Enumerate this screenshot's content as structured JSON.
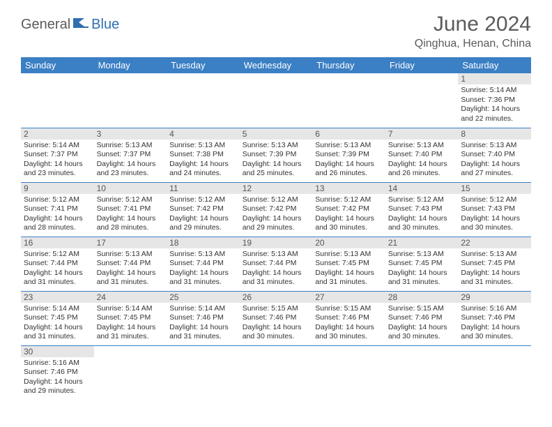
{
  "logo": {
    "part1": "General",
    "part2": "Blue"
  },
  "title": "June 2024",
  "location": "Qinghua, Henan, China",
  "colors": {
    "header_bg": "#3b7fc4",
    "header_text": "#ffffff",
    "day_row_bg": "#e6e6e6",
    "border": "#3b7fc4",
    "logo_gray": "#5a5a5a",
    "logo_blue": "#2f6fb0"
  },
  "weekdays": [
    "Sunday",
    "Monday",
    "Tuesday",
    "Wednesday",
    "Thursday",
    "Friday",
    "Saturday"
  ],
  "weeks": [
    [
      null,
      null,
      null,
      null,
      null,
      null,
      {
        "d": "1",
        "sr": "Sunrise: 5:14 AM",
        "ss": "Sunset: 7:36 PM",
        "dl1": "Daylight: 14 hours",
        "dl2": "and 22 minutes."
      }
    ],
    [
      {
        "d": "2",
        "sr": "Sunrise: 5:14 AM",
        "ss": "Sunset: 7:37 PM",
        "dl1": "Daylight: 14 hours",
        "dl2": "and 23 minutes."
      },
      {
        "d": "3",
        "sr": "Sunrise: 5:13 AM",
        "ss": "Sunset: 7:37 PM",
        "dl1": "Daylight: 14 hours",
        "dl2": "and 23 minutes."
      },
      {
        "d": "4",
        "sr": "Sunrise: 5:13 AM",
        "ss": "Sunset: 7:38 PM",
        "dl1": "Daylight: 14 hours",
        "dl2": "and 24 minutes."
      },
      {
        "d": "5",
        "sr": "Sunrise: 5:13 AM",
        "ss": "Sunset: 7:39 PM",
        "dl1": "Daylight: 14 hours",
        "dl2": "and 25 minutes."
      },
      {
        "d": "6",
        "sr": "Sunrise: 5:13 AM",
        "ss": "Sunset: 7:39 PM",
        "dl1": "Daylight: 14 hours",
        "dl2": "and 26 minutes."
      },
      {
        "d": "7",
        "sr": "Sunrise: 5:13 AM",
        "ss": "Sunset: 7:40 PM",
        "dl1": "Daylight: 14 hours",
        "dl2": "and 26 minutes."
      },
      {
        "d": "8",
        "sr": "Sunrise: 5:13 AM",
        "ss": "Sunset: 7:40 PM",
        "dl1": "Daylight: 14 hours",
        "dl2": "and 27 minutes."
      }
    ],
    [
      {
        "d": "9",
        "sr": "Sunrise: 5:12 AM",
        "ss": "Sunset: 7:41 PM",
        "dl1": "Daylight: 14 hours",
        "dl2": "and 28 minutes."
      },
      {
        "d": "10",
        "sr": "Sunrise: 5:12 AM",
        "ss": "Sunset: 7:41 PM",
        "dl1": "Daylight: 14 hours",
        "dl2": "and 28 minutes."
      },
      {
        "d": "11",
        "sr": "Sunrise: 5:12 AM",
        "ss": "Sunset: 7:42 PM",
        "dl1": "Daylight: 14 hours",
        "dl2": "and 29 minutes."
      },
      {
        "d": "12",
        "sr": "Sunrise: 5:12 AM",
        "ss": "Sunset: 7:42 PM",
        "dl1": "Daylight: 14 hours",
        "dl2": "and 29 minutes."
      },
      {
        "d": "13",
        "sr": "Sunrise: 5:12 AM",
        "ss": "Sunset: 7:42 PM",
        "dl1": "Daylight: 14 hours",
        "dl2": "and 30 minutes."
      },
      {
        "d": "14",
        "sr": "Sunrise: 5:12 AM",
        "ss": "Sunset: 7:43 PM",
        "dl1": "Daylight: 14 hours",
        "dl2": "and 30 minutes."
      },
      {
        "d": "15",
        "sr": "Sunrise: 5:12 AM",
        "ss": "Sunset: 7:43 PM",
        "dl1": "Daylight: 14 hours",
        "dl2": "and 30 minutes."
      }
    ],
    [
      {
        "d": "16",
        "sr": "Sunrise: 5:12 AM",
        "ss": "Sunset: 7:44 PM",
        "dl1": "Daylight: 14 hours",
        "dl2": "and 31 minutes."
      },
      {
        "d": "17",
        "sr": "Sunrise: 5:13 AM",
        "ss": "Sunset: 7:44 PM",
        "dl1": "Daylight: 14 hours",
        "dl2": "and 31 minutes."
      },
      {
        "d": "18",
        "sr": "Sunrise: 5:13 AM",
        "ss": "Sunset: 7:44 PM",
        "dl1": "Daylight: 14 hours",
        "dl2": "and 31 minutes."
      },
      {
        "d": "19",
        "sr": "Sunrise: 5:13 AM",
        "ss": "Sunset: 7:44 PM",
        "dl1": "Daylight: 14 hours",
        "dl2": "and 31 minutes."
      },
      {
        "d": "20",
        "sr": "Sunrise: 5:13 AM",
        "ss": "Sunset: 7:45 PM",
        "dl1": "Daylight: 14 hours",
        "dl2": "and 31 minutes."
      },
      {
        "d": "21",
        "sr": "Sunrise: 5:13 AM",
        "ss": "Sunset: 7:45 PM",
        "dl1": "Daylight: 14 hours",
        "dl2": "and 31 minutes."
      },
      {
        "d": "22",
        "sr": "Sunrise: 5:13 AM",
        "ss": "Sunset: 7:45 PM",
        "dl1": "Daylight: 14 hours",
        "dl2": "and 31 minutes."
      }
    ],
    [
      {
        "d": "23",
        "sr": "Sunrise: 5:14 AM",
        "ss": "Sunset: 7:45 PM",
        "dl1": "Daylight: 14 hours",
        "dl2": "and 31 minutes."
      },
      {
        "d": "24",
        "sr": "Sunrise: 5:14 AM",
        "ss": "Sunset: 7:45 PM",
        "dl1": "Daylight: 14 hours",
        "dl2": "and 31 minutes."
      },
      {
        "d": "25",
        "sr": "Sunrise: 5:14 AM",
        "ss": "Sunset: 7:46 PM",
        "dl1": "Daylight: 14 hours",
        "dl2": "and 31 minutes."
      },
      {
        "d": "26",
        "sr": "Sunrise: 5:15 AM",
        "ss": "Sunset: 7:46 PM",
        "dl1": "Daylight: 14 hours",
        "dl2": "and 30 minutes."
      },
      {
        "d": "27",
        "sr": "Sunrise: 5:15 AM",
        "ss": "Sunset: 7:46 PM",
        "dl1": "Daylight: 14 hours",
        "dl2": "and 30 minutes."
      },
      {
        "d": "28",
        "sr": "Sunrise: 5:15 AM",
        "ss": "Sunset: 7:46 PM",
        "dl1": "Daylight: 14 hours",
        "dl2": "and 30 minutes."
      },
      {
        "d": "29",
        "sr": "Sunrise: 5:16 AM",
        "ss": "Sunset: 7:46 PM",
        "dl1": "Daylight: 14 hours",
        "dl2": "and 30 minutes."
      }
    ],
    [
      {
        "d": "30",
        "sr": "Sunrise: 5:16 AM",
        "ss": "Sunset: 7:46 PM",
        "dl1": "Daylight: 14 hours",
        "dl2": "and 29 minutes."
      },
      null,
      null,
      null,
      null,
      null,
      null
    ]
  ]
}
